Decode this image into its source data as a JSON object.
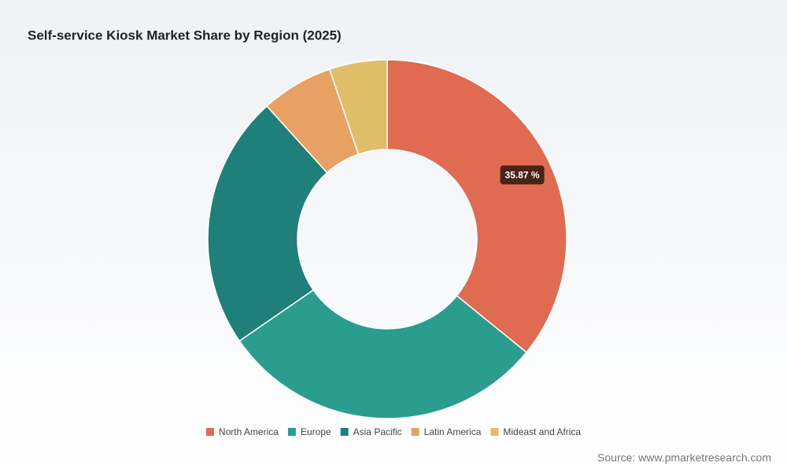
{
  "chart_data": {
    "type": "donut",
    "title": "Self-service Kiosk Market Share by Region (2025)",
    "categories": [
      "North America",
      "Europe",
      "Asia Pacific",
      "Latin America",
      "Mideast and Africa"
    ],
    "values": [
      35.87,
      29.53,
      22.9,
      6.5,
      5.2
    ],
    "value_labels": [
      "35.87 %",
      null,
      null,
      null,
      null
    ],
    "colors": [
      "#e06b50",
      "#2a9d8f",
      "#1f7f7a",
      "#e9a063",
      "#e0bd68"
    ],
    "source": "Source: www.pmarketresearch.com"
  }
}
